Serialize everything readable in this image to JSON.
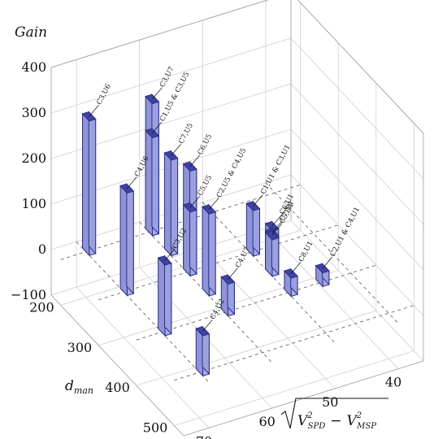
{
  "chart_data": {
    "type": "bar3d",
    "title": "",
    "zlabel": "Gain",
    "ylabel": "d",
    "ylabel_sub": "man",
    "xlabel": "√(V²SPD − V²MSP)",
    "xlabel_parts": {
      "v1": "V",
      "s1": "SPD",
      "minus": "−",
      "v2": "V",
      "s2": "MSP",
      "sup": "2"
    },
    "zlim": [
      -100,
      400
    ],
    "z_ticks": [
      "−100",
      "0",
      "100",
      "200",
      "300",
      "400"
    ],
    "z_tick_values": [
      -100,
      0,
      100,
      200,
      300,
      400
    ],
    "ylim": [
      175,
      525
    ],
    "y_ticks": [
      "200",
      "300",
      "400",
      "500"
    ],
    "y_tick_values": [
      200,
      300,
      400,
      500
    ],
    "xlim": [
      74,
      36
    ],
    "x_ticks": [
      "70",
      "60",
      "50",
      "40"
    ],
    "x_tick_values": [
      70,
      60,
      50,
      40
    ],
    "grid": true,
    "bar_color": "#a9ade6",
    "bar_edge": "#2b2f86",
    "bars": [
      {
        "label": "C3,U6",
        "x": 70,
        "y": 200,
        "z": 295
      },
      {
        "label": "C4,U6",
        "x": 70,
        "y": 300,
        "z": 225
      },
      {
        "label": "C3,U2",
        "x": 70,
        "y": 400,
        "z": 155
      },
      {
        "label": "C4,U2",
        "x": 70,
        "y": 500,
        "z": 88
      },
      {
        "label": "C3,U7",
        "x": 60,
        "y": 200,
        "z": 290
      },
      {
        "label": "C7,U5",
        "x": 60,
        "y": 250,
        "z": 210
      },
      {
        "label": "C1,U5 & C3,U5",
        "x": 60,
        "y": 200,
        "z": 215
      },
      {
        "label": "C6,U5",
        "x": 60,
        "y": 300,
        "z": 230
      },
      {
        "label": "C2,U5 & C4,U5",
        "x": 60,
        "y": 350,
        "z": 180
      },
      {
        "label": "C5,U5",
        "x": 60,
        "y": 300,
        "z": 140
      },
      {
        "label": "C4,U7",
        "x": 60,
        "y": 400,
        "z": 70
      },
      {
        "label": "C1,U1 & C3,U1",
        "x": 50,
        "y": 300,
        "z": 100
      },
      {
        "label": "C6,U1",
        "x": 50,
        "y": 350,
        "z": 100
      },
      {
        "label": "C7,U1",
        "x": 50,
        "y": 350,
        "z": 85
      },
      {
        "label": "C5,U1",
        "x": 50,
        "y": 350,
        "z": 80
      },
      {
        "label": "C8,U1",
        "x": 50,
        "y": 400,
        "z": 40
      },
      {
        "label": "C2,U1 & C4,U1",
        "x": 45,
        "y": 400,
        "z": 30
      }
    ]
  }
}
